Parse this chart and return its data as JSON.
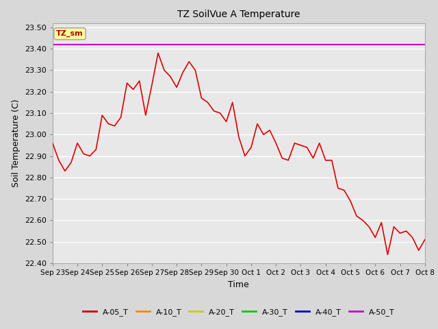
{
  "title": "TZ SoilVue A Temperature",
  "xlabel": "Time",
  "ylabel": "Soil Temperature (C)",
  "ylim": [
    22.4,
    23.52
  ],
  "fig_bg_color": "#d8d8d8",
  "plot_bg_color": "#e8e8e8",
  "grid_color": "#ffffff",
  "annotation_text": "TZ_sm",
  "annotation_bg": "#ffff99",
  "annotation_border": "#aaaaaa",
  "annotation_text_color": "#aa0000",
  "purple_line_value": 23.42,
  "x_tick_labels": [
    "Sep 23",
    "Sep 24",
    "Sep 25",
    "Sep 26",
    "Sep 27",
    "Sep 28",
    "Sep 29",
    "Sep 30",
    "Oct 1",
    "Oct 2",
    "Oct 3",
    "Oct 4",
    "Oct 5",
    "Oct 6",
    "Oct 7",
    "Oct 8"
  ],
  "red_line_color": "#dd0000",
  "purple_color": "#cc00cc",
  "legend_items": [
    {
      "label": "A-05_T",
      "color": "#cc0000"
    },
    {
      "label": "A-10_T",
      "color": "#ff8800"
    },
    {
      "label": "A-20_T",
      "color": "#cccc00"
    },
    {
      "label": "A-30_T",
      "color": "#00cc00"
    },
    {
      "label": "A-40_T",
      "color": "#0000cc"
    },
    {
      "label": "A-50_T",
      "color": "#cc00cc"
    }
  ],
  "red_x": [
    0,
    0.5,
    1,
    1.5,
    2,
    2.5,
    3,
    3.5,
    4,
    4.5,
    5,
    5.5,
    6,
    6.5,
    7,
    7.5,
    8,
    8.5,
    9,
    9.5,
    10,
    10.5,
    11,
    11.5,
    12,
    12.5,
    13,
    13.5,
    14,
    14.5,
    15,
    15.5,
    16,
    16.5,
    17,
    17.5,
    18,
    18.5,
    19,
    19.5,
    20,
    20.5,
    21,
    21.5,
    22,
    22.5,
    23,
    23.5,
    24,
    24.5,
    25,
    25.5,
    26,
    26.5,
    27,
    27.5,
    28,
    28.5,
    29,
    29.5,
    30
  ],
  "red_y": [
    22.96,
    22.88,
    22.83,
    22.87,
    22.96,
    22.91,
    22.9,
    22.93,
    23.09,
    23.05,
    23.04,
    23.08,
    23.24,
    23.21,
    23.25,
    23.09,
    23.23,
    23.38,
    23.3,
    23.27,
    23.22,
    23.29,
    23.34,
    23.3,
    23.17,
    23.15,
    23.11,
    23.1,
    23.06,
    23.15,
    22.99,
    22.9,
    22.94,
    23.05,
    23.0,
    23.02,
    22.96,
    22.89,
    22.88,
    22.96,
    22.95,
    22.94,
    22.89,
    22.96,
    22.88,
    22.88,
    22.75,
    22.74,
    22.69,
    22.62,
    22.6,
    22.57,
    22.52,
    22.59,
    22.44,
    22.57,
    22.54,
    22.55,
    22.52,
    22.46,
    22.51
  ]
}
